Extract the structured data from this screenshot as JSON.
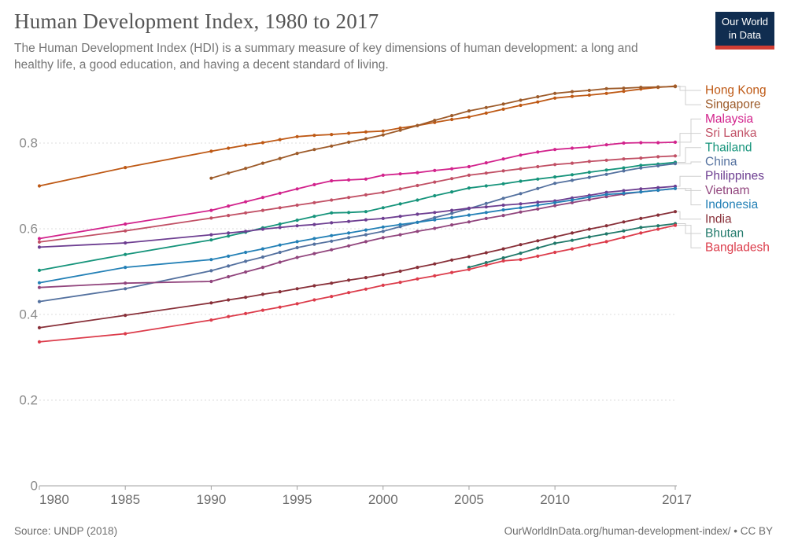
{
  "header": {
    "title": "Human Development Index, 1980 to 2017",
    "subtitle": "The Human Development Index (HDI) is a summary measure of key dimensions of human development: a long and healthy life, a good education, and having a decent standard of living.",
    "logo_line1": "Our World",
    "logo_line2": "in Data"
  },
  "footer": {
    "source": "Source: UNDP (2018)",
    "right": "OurWorldInData.org/human-development-index/ • CC BY"
  },
  "colors": {
    "title": "#555555",
    "subtitle": "#757575",
    "grid": "#dddddd",
    "axis": "#a0a0a0",
    "y_tick_label": "#8c8c8c",
    "x_tick_label": "#6d6d6d",
    "connector": "#cfcfcf",
    "logo_bg": "#102D50",
    "logo_red": "#D13D33"
  },
  "chart_data": {
    "type": "line",
    "title": "Human Development Index, 1980 to 2017",
    "xlabel": "",
    "ylabel": "",
    "xlim": [
      1980,
      2017
    ],
    "ylim": [
      0,
      0.95
    ],
    "x_ticks": [
      1980,
      1985,
      1990,
      1995,
      2000,
      2005,
      2010,
      2017
    ],
    "y_ticks": [
      0,
      0.2,
      0.4,
      0.6,
      0.8
    ],
    "grid": "horizontal dashed gridlines at 0.2 intervals",
    "legend_position": "right edge labels color-coded, connected with gray elbow lines",
    "marker": "small filled circle at each yearly observation",
    "series": [
      {
        "name": "Hong Kong",
        "color": "#BE5915",
        "x": [
          1980,
          1985,
          1990,
          1991,
          1992,
          1993,
          1994,
          1995,
          1996,
          1997,
          1998,
          1999,
          2000,
          2001,
          2002,
          2003,
          2004,
          2005,
          2006,
          2007,
          2008,
          2009,
          2010,
          2011,
          2012,
          2013,
          2014,
          2015,
          2016,
          2017
        ],
        "values": [
          0.7,
          0.743,
          0.781,
          0.788,
          0.795,
          0.801,
          0.808,
          0.815,
          0.818,
          0.82,
          0.823,
          0.826,
          0.828,
          0.835,
          0.841,
          0.848,
          0.855,
          0.861,
          0.87,
          0.879,
          0.888,
          0.896,
          0.905,
          0.909,
          0.912,
          0.916,
          0.921,
          0.926,
          0.93,
          0.933
        ]
      },
      {
        "name": "Singapore",
        "color": "#9D5B2A",
        "x": [
          1990,
          1991,
          1992,
          1993,
          1994,
          1995,
          1996,
          1997,
          1998,
          1999,
          2000,
          2001,
          2002,
          2003,
          2004,
          2005,
          2006,
          2007,
          2008,
          2009,
          2010,
          2011,
          2012,
          2013,
          2014,
          2015,
          2016,
          2017
        ],
        "values": [
          0.718,
          0.73,
          0.741,
          0.753,
          0.764,
          0.776,
          0.785,
          0.793,
          0.802,
          0.81,
          0.819,
          0.83,
          0.841,
          0.853,
          0.864,
          0.875,
          0.883,
          0.891,
          0.9,
          0.908,
          0.916,
          0.92,
          0.923,
          0.927,
          0.928,
          0.93,
          0.931,
          0.932
        ]
      },
      {
        "name": "Malaysia",
        "color": "#D2238C",
        "x": [
          1980,
          1985,
          1990,
          1991,
          1992,
          1993,
          1994,
          1995,
          1996,
          1997,
          1998,
          1999,
          2000,
          2001,
          2002,
          2003,
          2004,
          2005,
          2006,
          2007,
          2008,
          2009,
          2010,
          2011,
          2012,
          2013,
          2014,
          2015,
          2016,
          2017
        ],
        "values": [
          0.577,
          0.611,
          0.643,
          0.653,
          0.663,
          0.673,
          0.683,
          0.693,
          0.703,
          0.712,
          0.714,
          0.716,
          0.725,
          0.728,
          0.731,
          0.736,
          0.74,
          0.745,
          0.754,
          0.763,
          0.772,
          0.779,
          0.785,
          0.788,
          0.791,
          0.796,
          0.8,
          0.801,
          0.801,
          0.802
        ]
      },
      {
        "name": "Sri Lanka",
        "color": "#C15065",
        "x": [
          1980,
          1985,
          1990,
          1991,
          1992,
          1993,
          1994,
          1995,
          1996,
          1997,
          1998,
          1999,
          2000,
          2001,
          2002,
          2003,
          2004,
          2005,
          2006,
          2007,
          2008,
          2009,
          2010,
          2011,
          2012,
          2013,
          2014,
          2015,
          2016,
          2017
        ],
        "values": [
          0.569,
          0.595,
          0.625,
          0.631,
          0.637,
          0.643,
          0.649,
          0.655,
          0.661,
          0.667,
          0.673,
          0.679,
          0.685,
          0.693,
          0.701,
          0.709,
          0.717,
          0.725,
          0.73,
          0.735,
          0.74,
          0.745,
          0.75,
          0.753,
          0.757,
          0.76,
          0.763,
          0.765,
          0.768,
          0.77
        ]
      },
      {
        "name": "Thailand",
        "color": "#16947B",
        "x": [
          1980,
          1985,
          1990,
          1991,
          1992,
          1993,
          1994,
          1995,
          1996,
          1997,
          1998,
          1999,
          2000,
          2001,
          2002,
          2003,
          2004,
          2005,
          2006,
          2007,
          2008,
          2009,
          2010,
          2011,
          2012,
          2013,
          2014,
          2015,
          2016,
          2017
        ],
        "values": [
          0.503,
          0.54,
          0.574,
          0.583,
          0.592,
          0.602,
          0.611,
          0.62,
          0.629,
          0.637,
          0.638,
          0.64,
          0.649,
          0.658,
          0.667,
          0.677,
          0.686,
          0.695,
          0.7,
          0.705,
          0.711,
          0.716,
          0.721,
          0.726,
          0.732,
          0.737,
          0.742,
          0.748,
          0.751,
          0.755
        ]
      },
      {
        "name": "China",
        "color": "#54719F",
        "x": [
          1980,
          1985,
          1990,
          1991,
          1992,
          1993,
          1994,
          1995,
          1996,
          1997,
          1998,
          1999,
          2000,
          2001,
          2002,
          2003,
          2004,
          2005,
          2006,
          2007,
          2008,
          2009,
          2010,
          2011,
          2012,
          2013,
          2014,
          2015,
          2016,
          2017
        ],
        "values": [
          0.43,
          0.46,
          0.502,
          0.513,
          0.524,
          0.534,
          0.545,
          0.556,
          0.564,
          0.571,
          0.579,
          0.586,
          0.594,
          0.605,
          0.615,
          0.626,
          0.636,
          0.647,
          0.659,
          0.671,
          0.682,
          0.694,
          0.706,
          0.713,
          0.72,
          0.727,
          0.735,
          0.742,
          0.747,
          0.752
        ]
      },
      {
        "name": "Philippines",
        "color": "#6D3E91",
        "x": [
          1980,
          1985,
          1990,
          1991,
          1992,
          1993,
          1994,
          1995,
          1996,
          1997,
          1998,
          1999,
          2000,
          2001,
          2002,
          2003,
          2004,
          2005,
          2006,
          2007,
          2008,
          2009,
          2010,
          2011,
          2012,
          2013,
          2014,
          2015,
          2016,
          2017
        ],
        "values": [
          0.557,
          0.567,
          0.586,
          0.59,
          0.594,
          0.599,
          0.603,
          0.607,
          0.61,
          0.614,
          0.617,
          0.621,
          0.624,
          0.629,
          0.634,
          0.638,
          0.643,
          0.648,
          0.651,
          0.655,
          0.658,
          0.662,
          0.665,
          0.672,
          0.678,
          0.685,
          0.689,
          0.693,
          0.696,
          0.699
        ]
      },
      {
        "name": "Vietnam",
        "color": "#91457D",
        "x": [
          1980,
          1985,
          1990,
          1991,
          1992,
          1993,
          1994,
          1995,
          1996,
          1997,
          1998,
          1999,
          2000,
          2001,
          2002,
          2003,
          2004,
          2005,
          2006,
          2007,
          2008,
          2009,
          2010,
          2011,
          2012,
          2013,
          2014,
          2015,
          2016,
          2017
        ],
        "values": [
          0.463,
          0.473,
          0.477,
          0.488,
          0.499,
          0.51,
          0.522,
          0.533,
          0.542,
          0.551,
          0.56,
          0.57,
          0.579,
          0.586,
          0.594,
          0.601,
          0.609,
          0.616,
          0.624,
          0.631,
          0.639,
          0.646,
          0.654,
          0.661,
          0.668,
          0.675,
          0.681,
          0.686,
          0.69,
          0.694
        ]
      },
      {
        "name": "Indonesia",
        "color": "#2380B6",
        "x": [
          1980,
          1985,
          1990,
          1991,
          1992,
          1993,
          1994,
          1995,
          1996,
          1997,
          1998,
          1999,
          2000,
          2001,
          2002,
          2003,
          2004,
          2005,
          2006,
          2007,
          2008,
          2009,
          2010,
          2011,
          2012,
          2013,
          2014,
          2015,
          2016,
          2017
        ],
        "values": [
          0.474,
          0.51,
          0.528,
          0.536,
          0.545,
          0.553,
          0.562,
          0.57,
          0.577,
          0.584,
          0.59,
          0.597,
          0.604,
          0.61,
          0.615,
          0.621,
          0.626,
          0.632,
          0.638,
          0.644,
          0.649,
          0.655,
          0.661,
          0.667,
          0.674,
          0.68,
          0.683,
          0.686,
          0.69,
          0.694
        ]
      },
      {
        "name": "India",
        "color": "#883039",
        "x": [
          1980,
          1985,
          1990,
          1991,
          1992,
          1993,
          1994,
          1995,
          1996,
          1997,
          1998,
          1999,
          2000,
          2001,
          2002,
          2003,
          2004,
          2005,
          2006,
          2007,
          2008,
          2009,
          2010,
          2011,
          2012,
          2013,
          2014,
          2015,
          2016,
          2017
        ],
        "values": [
          0.369,
          0.398,
          0.427,
          0.434,
          0.44,
          0.447,
          0.453,
          0.46,
          0.467,
          0.473,
          0.48,
          0.486,
          0.493,
          0.501,
          0.51,
          0.518,
          0.527,
          0.535,
          0.544,
          0.553,
          0.563,
          0.572,
          0.581,
          0.59,
          0.599,
          0.607,
          0.616,
          0.624,
          0.632,
          0.64
        ]
      },
      {
        "name": "Bhutan",
        "color": "#20796A",
        "x": [
          2005,
          2006,
          2007,
          2008,
          2009,
          2010,
          2011,
          2012,
          2013,
          2014,
          2015,
          2016,
          2017
        ],
        "values": [
          0.51,
          0.521,
          0.532,
          0.543,
          0.555,
          0.566,
          0.573,
          0.581,
          0.588,
          0.595,
          0.603,
          0.607,
          0.612
        ]
      },
      {
        "name": "Bangladesh",
        "color": "#DC3C4B",
        "x": [
          1980,
          1985,
          1990,
          1991,
          1992,
          1993,
          1994,
          1995,
          1996,
          1997,
          1998,
          1999,
          2000,
          2001,
          2002,
          2003,
          2004,
          2005,
          2006,
          2007,
          2008,
          2009,
          2010,
          2011,
          2012,
          2013,
          2014,
          2015,
          2016,
          2017
        ],
        "values": [
          0.336,
          0.355,
          0.387,
          0.395,
          0.402,
          0.41,
          0.417,
          0.425,
          0.434,
          0.442,
          0.451,
          0.459,
          0.468,
          0.475,
          0.483,
          0.49,
          0.498,
          0.505,
          0.515,
          0.525,
          0.528,
          0.536,
          0.545,
          0.553,
          0.562,
          0.57,
          0.58,
          0.59,
          0.599,
          0.608
        ]
      }
    ]
  }
}
